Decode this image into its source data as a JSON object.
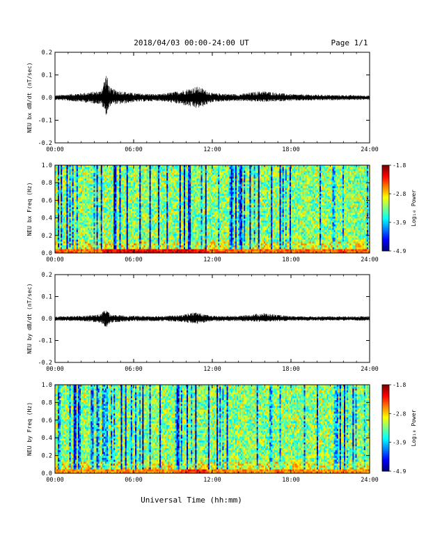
{
  "header": {
    "title": "2018/04/03  00:00-24:00 UT",
    "page": "Page 1/1"
  },
  "footer": {
    "xlabel": "Universal Time (hh:mm)"
  },
  "chart_data": [
    {
      "type": "line",
      "title": "",
      "ylabel": "NEU bx dB/dt (nT/sec)",
      "xlabel": "",
      "x_ticks": [
        "00:00",
        "06:00",
        "12:00",
        "18:00",
        "24:00"
      ],
      "y_ticks": [
        "0.2",
        "0.1",
        "0.0",
        "-0.1",
        "-0.2"
      ],
      "ylim": [
        -0.2,
        0.2
      ],
      "xlim_hours": [
        0,
        24
      ],
      "series": [
        {
          "x": [
            0,
            2,
            3.5,
            3.9,
            4.0,
            4.1,
            4.3,
            5.0,
            6.0,
            8.0,
            9.5,
            10.2,
            10.8,
            11.3,
            12.0,
            14.0,
            15.8,
            18.0,
            21.0,
            24.0
          ],
          "max": [
            0.01,
            0.02,
            0.03,
            0.11,
            0.09,
            0.06,
            0.04,
            0.03,
            0.02,
            0.015,
            0.03,
            0.04,
            0.05,
            0.04,
            0.02,
            0.015,
            0.03,
            0.015,
            0.012,
            0.01
          ],
          "min": [
            -0.01,
            -0.02,
            -0.03,
            -0.08,
            -0.07,
            -0.05,
            -0.03,
            -0.03,
            -0.02,
            -0.015,
            -0.03,
            -0.04,
            -0.05,
            -0.04,
            -0.02,
            -0.015,
            -0.02,
            -0.015,
            -0.012,
            -0.01
          ]
        }
      ]
    },
    {
      "type": "heatmap",
      "title": "",
      "ylabel": "NEU bx Freq (Hz)",
      "xlabel": "",
      "x_ticks": [
        "00:00",
        "06:00",
        "12:00",
        "18:00",
        "24:00"
      ],
      "y_ticks": [
        "1.0",
        "0.8",
        "0.6",
        "0.4",
        "0.2",
        "0.0"
      ],
      "ylim": [
        0,
        1.0
      ],
      "colorbar": {
        "label": "Log₁₀ Power",
        "ticks": [
          "-1.8",
          "-2.8",
          "-3.9",
          "-4.9"
        ],
        "range": [
          -4.9,
          -1.8
        ]
      },
      "description_values": {
        "typical_log_power": -3.3,
        "low_freq_band_log_power": -2.5,
        "peak_low_freq_hours": [
          3.5,
          11.5
        ]
      }
    },
    {
      "type": "line",
      "title": "",
      "ylabel": "NEU by dB/dt (nT/sec)",
      "xlabel": "",
      "x_ticks": [
        "00:00",
        "06:00",
        "12:00",
        "18:00",
        "24:00"
      ],
      "y_ticks": [
        "0.2",
        "0.1",
        "0.0",
        "-0.1",
        "-0.2"
      ],
      "ylim": [
        -0.2,
        0.2
      ],
      "xlim_hours": [
        0,
        24
      ],
      "series": [
        {
          "x": [
            0,
            2,
            3.5,
            3.9,
            4.0,
            4.2,
            5.0,
            6.0,
            8.0,
            9.5,
            10.2,
            10.8,
            11.3,
            12.0,
            14.0,
            15.9,
            18.0,
            21.0,
            24.0
          ],
          "max": [
            0.01,
            0.012,
            0.02,
            0.05,
            0.04,
            0.02,
            0.015,
            0.012,
            0.012,
            0.015,
            0.025,
            0.03,
            0.02,
            0.012,
            0.012,
            0.025,
            0.01,
            0.01,
            0.01
          ],
          "min": [
            -0.01,
            -0.012,
            -0.02,
            -0.045,
            -0.035,
            -0.02,
            -0.015,
            -0.012,
            -0.012,
            -0.015,
            -0.02,
            -0.025,
            -0.02,
            -0.012,
            -0.012,
            -0.015,
            -0.01,
            -0.01,
            -0.01
          ]
        }
      ]
    },
    {
      "type": "heatmap",
      "title": "",
      "ylabel": "NEU by Freq (Hz)",
      "xlabel": "",
      "x_ticks": [
        "00:00",
        "06:00",
        "12:00",
        "18:00",
        "24:00"
      ],
      "y_ticks": [
        "1.0",
        "0.8",
        "0.6",
        "0.4",
        "0.2",
        "0.0"
      ],
      "ylim": [
        0,
        1.0
      ],
      "colorbar": {
        "label": "Log₁₀ Power",
        "ticks": [
          "-1.8",
          "-2.8",
          "-3.9",
          "-4.9"
        ],
        "range": [
          -4.9,
          -1.8
        ]
      },
      "description_values": {
        "typical_log_power": -3.3,
        "low_freq_band_log_power": -2.6,
        "peak_low_freq_hours": [
          9.5,
          11.5
        ]
      }
    }
  ]
}
